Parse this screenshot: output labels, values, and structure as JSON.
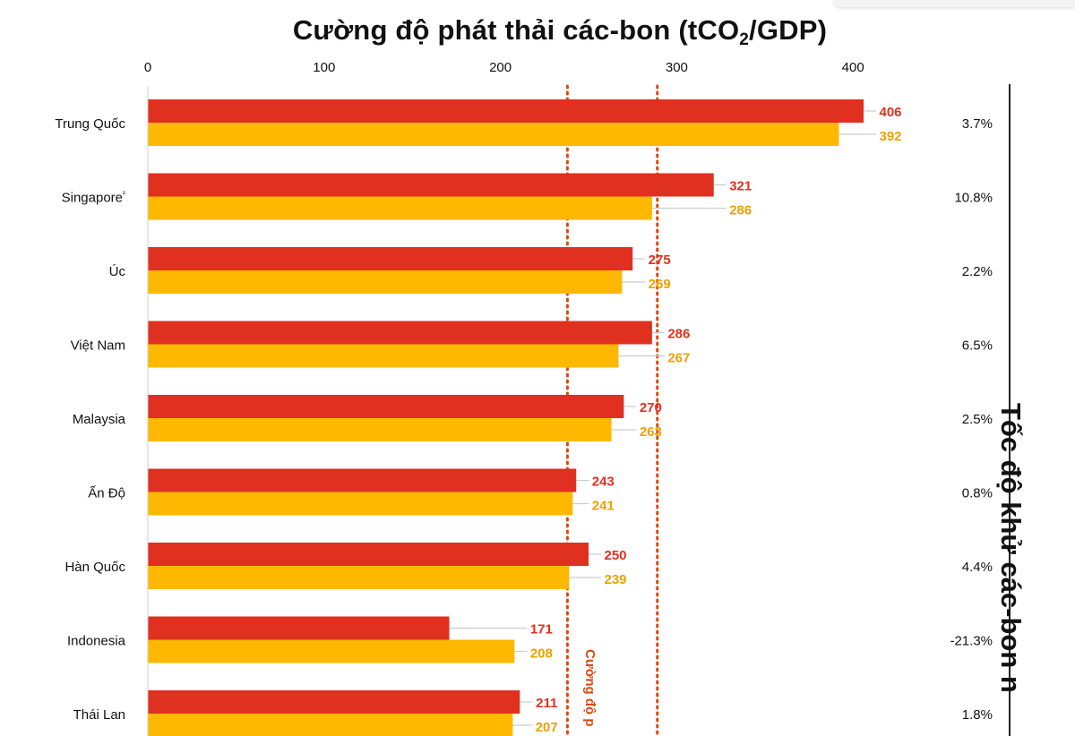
{
  "title": {
    "main": "Cường độ phát thải các-bon (tCO",
    "sub": "2",
    "suffix": "/GDP)"
  },
  "right_axis_title": "Tốc độ khử các-bon n",
  "vline_label": "Cường độ p",
  "colors": {
    "series_a": "#e03020",
    "series_b": "#ffb800",
    "series_a_label": "#e03020",
    "series_b_label": "#f0a000",
    "reference_line": "#d94a10"
  },
  "chart_data": {
    "type": "bar",
    "orientation": "horizontal",
    "categories": [
      "Trung Quốc",
      "Singapore²",
      "Úc",
      "Việt Nam",
      "Malaysia",
      "Ấn Độ",
      "Hàn Quốc",
      "Indonesia",
      "Thái Lan"
    ],
    "series": [
      {
        "values": [
          406,
          321,
          275,
          286,
          270,
          243,
          250,
          171,
          211
        ]
      },
      {
        "values": [
          392,
          286,
          269,
          267,
          263,
          241,
          239,
          208,
          207
        ]
      }
    ],
    "rates": [
      "3.7%",
      "10.8%",
      "2.2%",
      "6.5%",
      "2.5%",
      "0.8%",
      "4.4%",
      "-21.3%",
      "1.8%"
    ],
    "xlim": [
      0,
      400
    ],
    "xticks": [
      "0",
      "100",
      "200",
      "300",
      "400"
    ],
    "reference_lines": [
      238,
      289
    ]
  }
}
